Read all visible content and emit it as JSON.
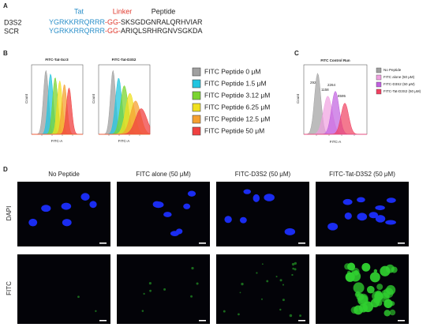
{
  "panels": {
    "a": {
      "label": "A",
      "header": [
        "Tat",
        "Linker",
        "Peptide"
      ],
      "rows": [
        {
          "name": "D3S2",
          "tat": "YGRKKRRQRRR",
          "linker": "-GG-",
          "peptide": "SKSGDGNRALQRHVIAR"
        },
        {
          "name": "SCR",
          "tat": "YGRKKRRQRRR",
          "linker": "-GG-",
          "peptide": "ARIQLSRHRGNVSGKDA"
        }
      ]
    },
    "b": {
      "label": "B",
      "plots": [
        {
          "title": "FITC-Tat-Scr3",
          "y_label": "Count",
          "x_label": "FITC-A"
        },
        {
          "title": "FITC-Tat-D3S2",
          "y_label": "Count",
          "x_label": "FITC-A"
        }
      ],
      "legend": [
        "FITC Peptide 0 μM",
        "FITC Peptide 1.5 μM",
        "FITC Peptide 3.12 μM",
        "FITC Peptide 6.25 μM",
        "FITC Peptide 12.5 μM",
        "FITC Peptide 50 μM"
      ]
    },
    "c": {
      "label": "C",
      "title": "FITC Control Run",
      "y_label": "Count",
      "x_label": "FITC-A",
      "peak_labels": [
        "292",
        "1158",
        "2264",
        "8595"
      ],
      "legend": [
        "No Peptide",
        "FITC  alone (50 μM)",
        "FITC-D3S2 (50 μM)",
        "FITC-Tat-D3S2 (50 μM)"
      ]
    },
    "d": {
      "label": "D",
      "columns": [
        "No Peptide",
        "FITC  alone (50 μM)",
        "FITC-D3S2 (50 μM)",
        "FITC-Tat-D3S2 (50 μM)"
      ],
      "rows": [
        "DAPI",
        "FITC"
      ]
    }
  }
}
